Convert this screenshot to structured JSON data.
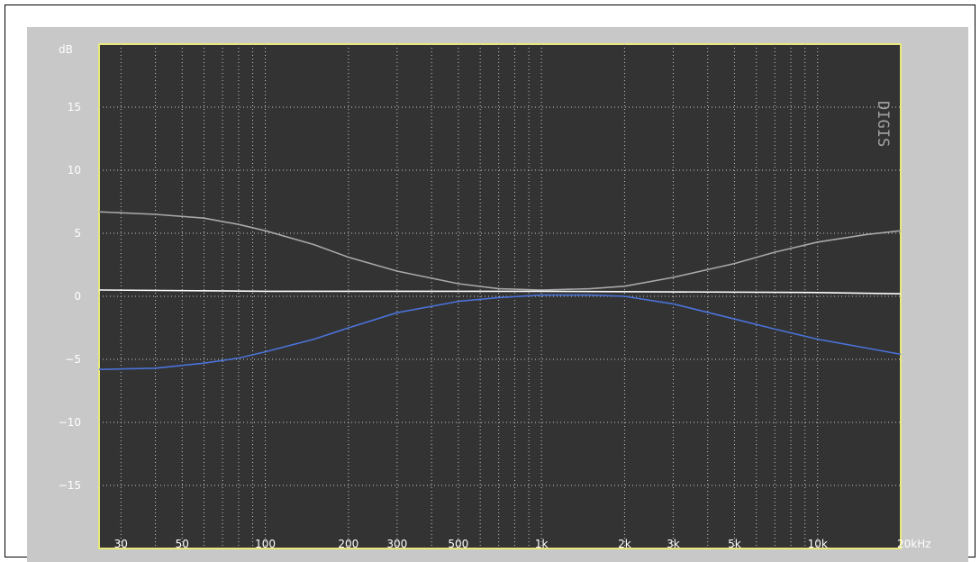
{
  "chart_data": {
    "type": "line",
    "title": "",
    "xlabel": "",
    "ylabel": "dB",
    "x_scale": "log",
    "xlim": [
      25,
      20000
    ],
    "ylim": [
      -20,
      20
    ],
    "x_ticks": [
      {
        "value": 30,
        "label": "30"
      },
      {
        "value": 50,
        "label": "50"
      },
      {
        "value": 100,
        "label": "100"
      },
      {
        "value": 200,
        "label": "200"
      },
      {
        "value": 300,
        "label": "300"
      },
      {
        "value": 500,
        "label": "500"
      },
      {
        "value": 1000,
        "label": "1k"
      },
      {
        "value": 2000,
        "label": "2k"
      },
      {
        "value": 3000,
        "label": "3k"
      },
      {
        "value": 5000,
        "label": "5k"
      },
      {
        "value": 10000,
        "label": "10k"
      },
      {
        "value": 20000,
        "label": "20kHz"
      }
    ],
    "y_ticks": [
      {
        "value": 15,
        "label": "15"
      },
      {
        "value": 10,
        "label": "10"
      },
      {
        "value": 5,
        "label": "5"
      },
      {
        "value": 0,
        "label": "0"
      },
      {
        "value": -5,
        "label": "−5"
      },
      {
        "value": -10,
        "label": "−10"
      },
      {
        "value": -15,
        "label": "−15"
      }
    ],
    "grid": true,
    "legend": "none",
    "watermark": "DIGIS",
    "series": [
      {
        "color": "#a8a8a8",
        "x": [
          25,
          40,
          60,
          80,
          100,
          150,
          200,
          300,
          500,
          700,
          1000,
          1500,
          2000,
          3000,
          5000,
          7000,
          10000,
          15000,
          20000
        ],
        "y": [
          6.7,
          6.5,
          6.2,
          5.7,
          5.2,
          4.1,
          3.1,
          2.0,
          1.0,
          0.6,
          0.5,
          0.6,
          0.8,
          1.5,
          2.6,
          3.5,
          4.3,
          4.9,
          5.2
        ]
      },
      {
        "color": "#ffffff",
        "x": [
          25,
          100,
          1000,
          10000,
          20000
        ],
        "y": [
          0.5,
          0.4,
          0.4,
          0.3,
          0.2
        ]
      },
      {
        "color": "#4a72d8",
        "x": [
          25,
          40,
          60,
          80,
          100,
          150,
          200,
          300,
          500,
          700,
          1000,
          1500,
          2000,
          3000,
          5000,
          7000,
          10000,
          15000,
          20000
        ],
        "y": [
          -5.8,
          -5.7,
          -5.3,
          -4.9,
          -4.4,
          -3.4,
          -2.5,
          -1.3,
          -0.4,
          -0.1,
          0.1,
          0.1,
          0.0,
          -0.6,
          -1.8,
          -2.6,
          -3.4,
          -4.1,
          -4.6
        ]
      }
    ]
  }
}
